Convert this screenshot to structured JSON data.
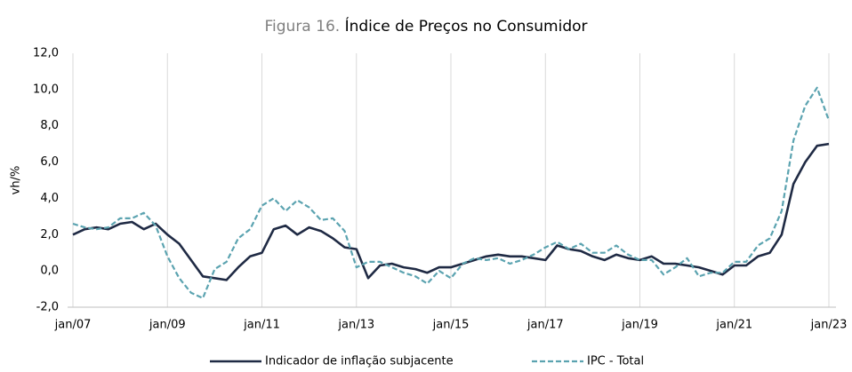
{
  "chart_data": {
    "type": "line",
    "figure_label": "Figura 16.",
    "title": "Índice de Preços no Consumidor",
    "ylabel": "vh/%",
    "categories": [
      "jan/07",
      null,
      null,
      null,
      null,
      null,
      null,
      null,
      "jan/09",
      null,
      null,
      null,
      null,
      null,
      null,
      null,
      "jan/11",
      null,
      null,
      null,
      null,
      null,
      null,
      null,
      "jan/13",
      null,
      null,
      null,
      null,
      null,
      null,
      null,
      "jan/15",
      null,
      null,
      null,
      null,
      null,
      null,
      null,
      "jan/17",
      null,
      null,
      null,
      null,
      null,
      null,
      null,
      "jan/19",
      null,
      null,
      null,
      null,
      null,
      null,
      null,
      "jan/21",
      null,
      null,
      null,
      null,
      null,
      null,
      null,
      "jan/23"
    ],
    "series": [
      {
        "name": "Indicador de inflação subjacente",
        "color": "#1f2a44",
        "dash": false,
        "values": [
          2.0,
          2.3,
          2.4,
          2.3,
          2.6,
          2.7,
          2.3,
          2.6,
          2.0,
          1.5,
          0.6,
          -0.3,
          -0.4,
          -0.5,
          0.2,
          0.8,
          1.0,
          2.3,
          2.5,
          2.0,
          2.4,
          2.2,
          1.8,
          1.3,
          1.2,
          -0.4,
          0.3,
          0.4,
          0.2,
          0.1,
          -0.1,
          0.2,
          0.2,
          0.4,
          0.6,
          0.8,
          0.9,
          0.8,
          0.8,
          0.7,
          0.6,
          1.4,
          1.2,
          1.1,
          0.8,
          0.6,
          0.9,
          0.7,
          0.6,
          0.8,
          0.4,
          0.4,
          0.3,
          0.2,
          0.0,
          -0.2,
          0.3,
          0.3,
          0.8,
          1.0,
          2.0,
          4.8,
          6.0,
          6.9,
          7.0
        ]
      },
      {
        "name": "IPC - Total",
        "color": "#5ba3b0",
        "dash": true,
        "values": [
          2.6,
          2.4,
          2.3,
          2.4,
          2.9,
          2.9,
          3.2,
          2.5,
          0.8,
          -0.4,
          -1.2,
          -1.5,
          0.1,
          0.5,
          1.8,
          2.3,
          3.6,
          4.0,
          3.3,
          3.9,
          3.5,
          2.8,
          2.9,
          2.2,
          0.2,
          0.5,
          0.5,
          0.2,
          -0.1,
          -0.3,
          -0.7,
          0.0,
          -0.4,
          0.4,
          0.7,
          0.6,
          0.7,
          0.4,
          0.6,
          0.9,
          1.3,
          1.6,
          1.2,
          1.5,
          1.0,
          1.0,
          1.4,
          0.9,
          0.6,
          0.6,
          -0.2,
          0.2,
          0.7,
          -0.3,
          -0.1,
          -0.1,
          0.5,
          0.5,
          1.4,
          1.8,
          3.3,
          7.2,
          9.1,
          10.1,
          8.3
        ]
      }
    ],
    "ylim": [
      -2,
      12
    ],
    "yticks": [
      {
        "value": -2,
        "label": "-2,0"
      },
      {
        "value": 0,
        "label": "0,0"
      },
      {
        "value": 2,
        "label": "2,0"
      },
      {
        "value": 4,
        "label": "4,0"
      },
      {
        "value": 6,
        "label": "6,0"
      },
      {
        "value": 8,
        "label": "8,0"
      },
      {
        "value": 10,
        "label": "10,0"
      },
      {
        "value": 12,
        "label": "12,0"
      }
    ],
    "grid": "x",
    "legend": "bottom"
  }
}
